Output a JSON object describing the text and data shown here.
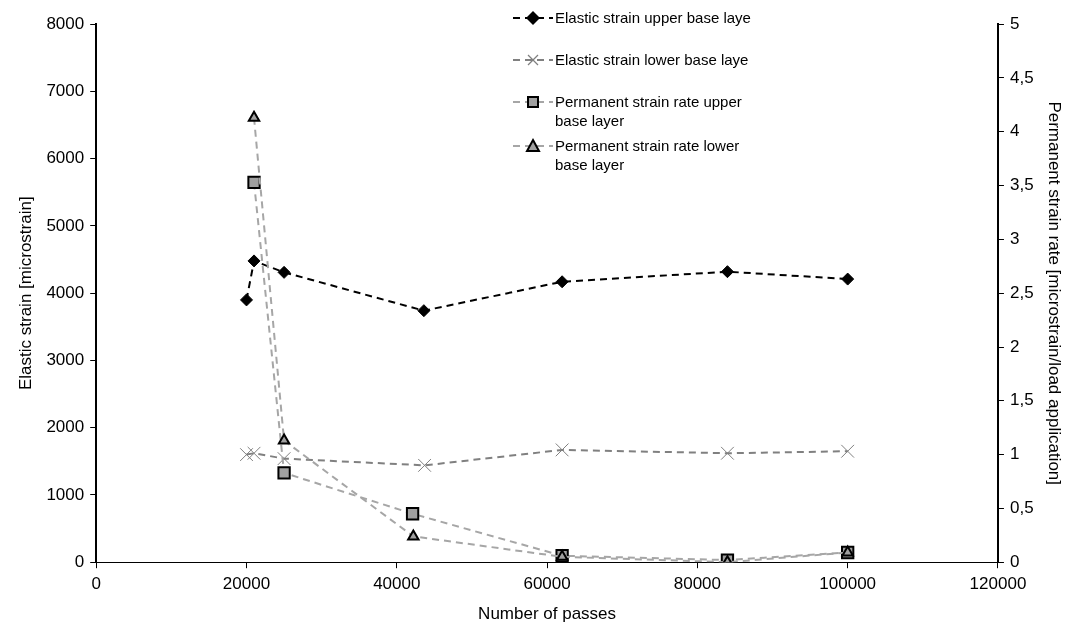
{
  "chart_data": {
    "type": "line",
    "xlabel": "Number of passes",
    "ylabel": "Elastic strain [microstrain]",
    "y2label": "Permanent strain rate [microstrain/load application]",
    "xlim": [
      0,
      120000
    ],
    "xticks": [
      0,
      20000,
      40000,
      60000,
      80000,
      100000,
      120000
    ],
    "ylim": [
      0,
      8000
    ],
    "yticks": [
      0,
      1000,
      2000,
      3000,
      4000,
      5000,
      6000,
      7000,
      8000
    ],
    "y2lim": [
      0,
      5
    ],
    "y2ticks": [
      0,
      {
        "value": 0.5,
        "label": "0,5"
      },
      1,
      {
        "value": 1.5,
        "label": "1,5"
      },
      2,
      {
        "value": 2.5,
        "label": "2,5"
      },
      3,
      {
        "value": 3.5,
        "label": "3,5"
      },
      4,
      {
        "value": 4.5,
        "label": "4,5"
      },
      5
    ],
    "grid": false,
    "legend": "top",
    "line_style": "dashed",
    "series": [
      {
        "name": "Elastic strain upper base laye",
        "color": "#000000",
        "marker": "diamond",
        "x": [
          20000,
          21000,
          25000,
          43600,
          62000,
          84000,
          100000
        ],
        "values": [
          3900,
          4480,
          4310,
          3740,
          4170,
          4320,
          4210
        ]
      },
      {
        "name": "Elastic strain lower base laye",
        "color": "#808080",
        "marker": "cross",
        "x": [
          20000,
          21000,
          25000,
          43700,
          62000,
          84000,
          100000
        ],
        "values": [
          1600,
          1620,
          1540,
          1440,
          1670,
          1620,
          1650
        ]
      },
      {
        "name": "Permanent strain rate upper base layer",
        "color": "#a6a6a6",
        "marker": "square",
        "axis": "y2",
        "x": [
          21000,
          25000,
          42100,
          62000,
          84000,
          100000
        ],
        "values": [
          3.53,
          0.83,
          0.45,
          0.06,
          0.02,
          0.09
        ]
      },
      {
        "name": "Permanent strain rate lower base layer",
        "color": "#a6a6a6",
        "marker": "triangle",
        "axis": "y2",
        "x": [
          21000,
          25000,
          42200,
          62000,
          84000,
          100000
        ],
        "values": [
          4.13,
          1.13,
          0.24,
          0.05,
          0,
          0.09
        ]
      }
    ]
  }
}
